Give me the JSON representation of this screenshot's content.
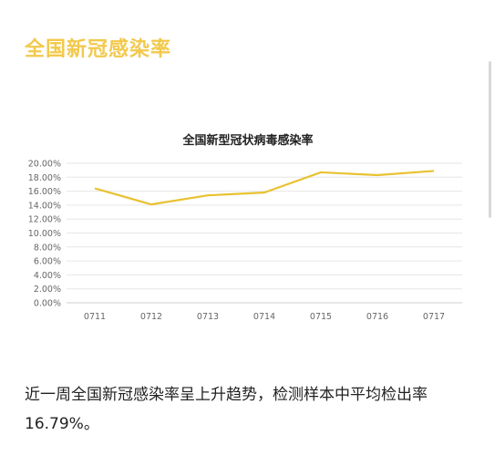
{
  "heading": "全国新冠感染率",
  "body_text": "近一周全国新冠感染率呈上升趋势，检测样本中平均检出率16.79%。",
  "colors": {
    "accent": "#f2c94c",
    "line": "#e8c232",
    "grid": "#e6e6e6",
    "axis_text": "#666666"
  },
  "chart_data": {
    "type": "line",
    "title": "全国新型冠状病毒感染率",
    "xlabel": "",
    "ylabel": "",
    "categories": [
      "0711",
      "0712",
      "0713",
      "0714",
      "0715",
      "0716",
      "0717"
    ],
    "yticks": [
      "0.00%",
      "2.00%",
      "4.00%",
      "6.00%",
      "8.00%",
      "10.00%",
      "12.00%",
      "14.00%",
      "16.00%",
      "18.00%",
      "20.00%"
    ],
    "ylim": [
      0,
      20
    ],
    "grid": true,
    "legend": "none",
    "series": [
      {
        "values": [
          16.4,
          14.1,
          15.4,
          15.8,
          18.7,
          18.3,
          18.9
        ]
      }
    ]
  }
}
